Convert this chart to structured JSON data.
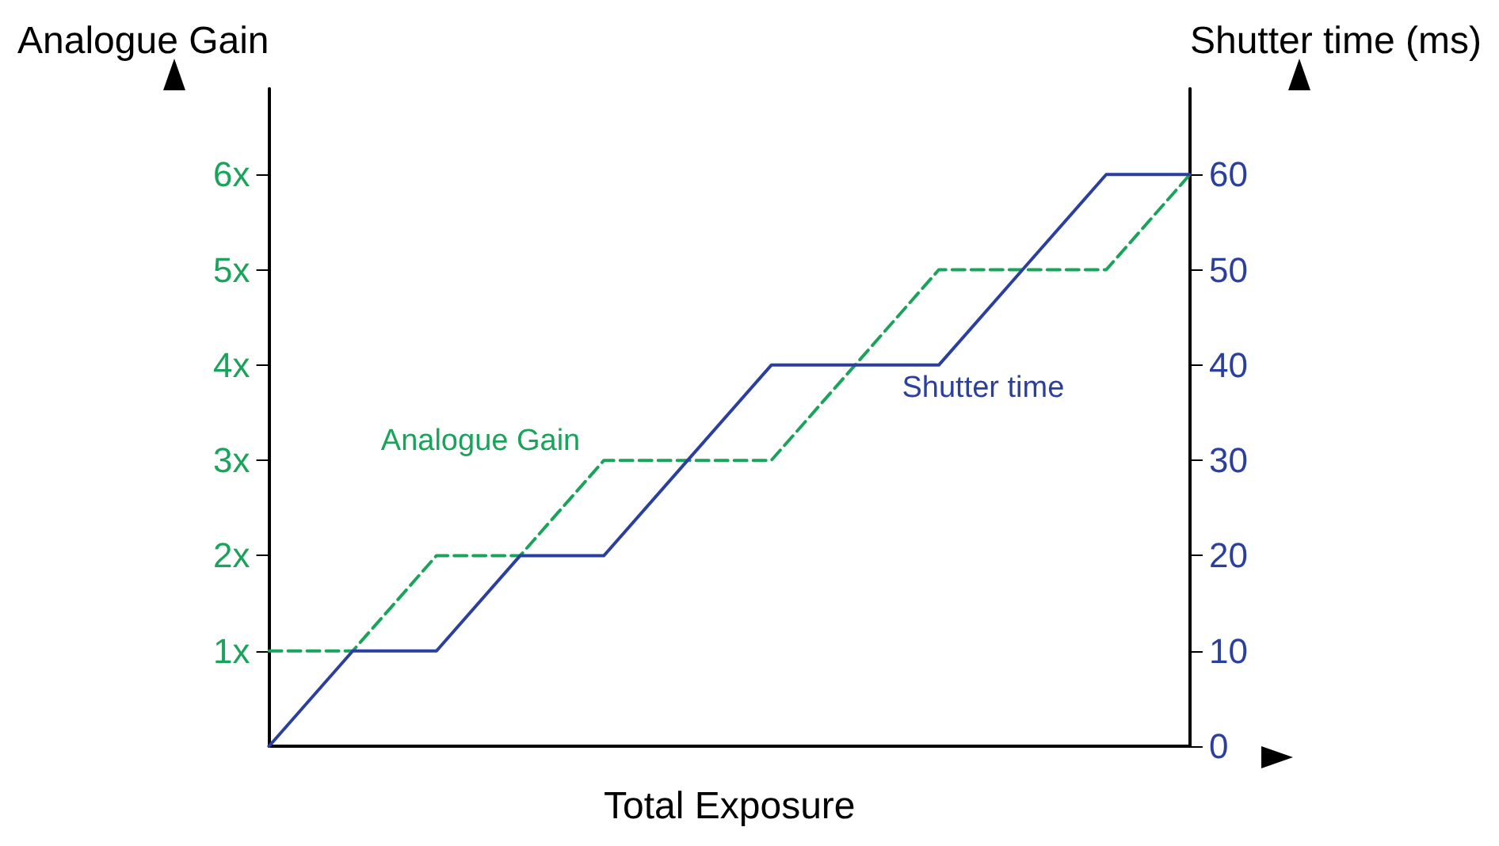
{
  "chart_data": {
    "type": "line",
    "xlabel": "Total Exposure",
    "ylabel": "Analogue Gain",
    "y2label": "Shutter time (ms)",
    "categories": [
      null,
      null,
      null,
      null,
      null,
      null,
      null,
      null,
      null,
      null,
      null,
      null
    ],
    "series": [
      {
        "name": "Analogue Gain",
        "color": "#1aa35a",
        "line_style": "dashed",
        "values": [
          1,
          1,
          2,
          2,
          3,
          3,
          3,
          4,
          5,
          5,
          5,
          6
        ]
      },
      {
        "name": "Shutter time",
        "color": "#2b3f9e",
        "line_style": "solid",
        "axis": "y2",
        "values": [
          0,
          10,
          10,
          20,
          20,
          30,
          40,
          40,
          40,
          50,
          60,
          60
        ]
      }
    ],
    "ylim": [
      0,
      6.9
    ],
    "yticks": [
      {
        "value": 1,
        "label": "1x"
      },
      {
        "value": 2,
        "label": "2x"
      },
      {
        "value": 3,
        "label": "3x"
      },
      {
        "value": 4,
        "label": "4x"
      },
      {
        "value": 5,
        "label": "5x"
      },
      {
        "value": 6,
        "label": "6x"
      }
    ],
    "y2lim": [
      0,
      69
    ],
    "y2ticks": [
      0,
      10,
      20,
      30,
      40,
      50,
      60
    ],
    "marker": "none",
    "grid": false,
    "legend": false
  }
}
